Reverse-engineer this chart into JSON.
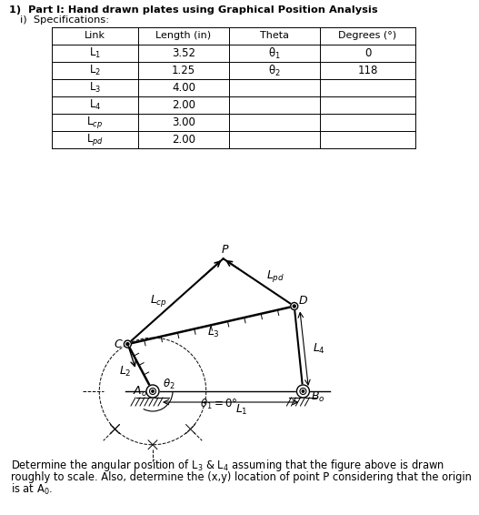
{
  "title_line1": "1)  Part I: Hand drawn plates using Graphical Position Analysis",
  "title_line2": "i)  Specifications:",
  "table_headers": [
    "Link",
    "Length (in)",
    "Theta",
    "Degrees (°)"
  ],
  "row_data": [
    [
      "L$_1$",
      "3.52",
      "θ$_1$",
      "0"
    ],
    [
      "L$_2$",
      "1.25",
      "θ$_2$",
      "118"
    ],
    [
      "L$_3$",
      "4.00",
      "",
      ""
    ],
    [
      "L$_4$",
      "2.00",
      "",
      ""
    ],
    [
      "L$_{cp}$",
      "3.00",
      "",
      ""
    ],
    [
      "L$_{pd}$",
      "2.00",
      "",
      ""
    ]
  ],
  "footer_text": "Determine the angular position of L$_3$ & L$_4$ assuming that the figure above is drawn\nroughly to scale. Also, determine the (x,y) location of point P considering that the origin\nis at A$_0$.",
  "bg_color": "#ffffff",
  "lc": "#000000",
  "ppi": 47.0,
  "Ao": [
    168.0,
    430.0
  ],
  "L1": 3.52,
  "L2": 1.25,
  "L3": 4.0,
  "L4": 2.0,
  "Lcp": 3.0,
  "Lpd": 2.0,
  "theta2_deg": 118.0
}
